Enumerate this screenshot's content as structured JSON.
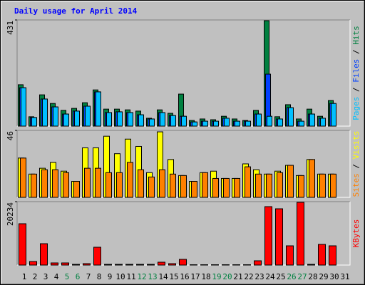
{
  "chart_data": [
    {
      "type": "bar",
      "title": "Daily usage for April 2014",
      "legend_separator": " / ",
      "ylim": [
        0,
        431
      ],
      "yticks": [
        431
      ],
      "series": [
        {
          "name": "Hits",
          "color": "#008040",
          "values": [
            168,
            38,
            127,
            92,
            64,
            72,
            95,
            147,
            69,
            69,
            66,
            61,
            32,
            66,
            52,
            130,
            23,
            29,
            26,
            40,
            29,
            23,
            64,
            428,
            38,
            87,
            29,
            69,
            40,
            104,
            0
          ]
        },
        {
          "name": "Files",
          "color": "#0040ff",
          "values": [
            156,
            35,
            110,
            78,
            49,
            61,
            81,
            139,
            55,
            58,
            55,
            46,
            29,
            55,
            43,
            40,
            17,
            20,
            20,
            32,
            20,
            20,
            49,
            211,
            29,
            75,
            20,
            49,
            32,
            92,
            0
          ]
        },
        {
          "name": "Pages",
          "color": "#00c0ff",
          "values": [
            156,
            35,
            110,
            78,
            49,
            61,
            81,
            139,
            55,
            58,
            55,
            46,
            29,
            55,
            43,
            40,
            17,
            20,
            20,
            32,
            20,
            20,
            49,
            40,
            29,
            75,
            20,
            49,
            32,
            92,
            0
          ]
        }
      ]
    },
    {
      "type": "bar",
      "legend_separator": " / ",
      "ylim": [
        0,
        46
      ],
      "yticks": [
        46
      ],
      "series": [
        {
          "name": "Visits",
          "color": "#ffff00",
          "values": [
            27,
            16,
            20,
            24,
            18,
            11,
            34,
            34,
            42,
            30,
            40,
            35,
            17,
            45,
            26,
            15,
            11,
            17,
            18,
            13,
            13,
            23,
            19,
            16,
            18,
            22,
            15,
            26,
            16,
            16,
            0
          ]
        },
        {
          "name": "Sites",
          "color": "#ff8000",
          "values": [
            27,
            16,
            19,
            19,
            17,
            11,
            20,
            20,
            17,
            17,
            24,
            19,
            14,
            19,
            16,
            15,
            11,
            17,
            13,
            13,
            13,
            21,
            16,
            16,
            17,
            22,
            15,
            26,
            16,
            16,
            0
          ]
        }
      ]
    },
    {
      "type": "bar",
      "ylim": [
        0,
        20234
      ],
      "yticks": [
        20234
      ],
      "categories": [
        "1",
        "2",
        "3",
        "4",
        "5",
        "6",
        "7",
        "8",
        "9",
        "10",
        "11",
        "12",
        "13",
        "14",
        "15",
        "16",
        "17",
        "18",
        "19",
        "20",
        "21",
        "22",
        "23",
        "24",
        "25",
        "26",
        "27",
        "28",
        "29",
        "30",
        "31"
      ],
      "category_colors": [
        "#000000",
        "#000000",
        "#000000",
        "#000000",
        "#008040",
        "#008040",
        "#000000",
        "#000000",
        "#000000",
        "#000000",
        "#000000",
        "#008040",
        "#008040",
        "#000000",
        "#000000",
        "#000000",
        "#000000",
        "#000000",
        "#008040",
        "#008040",
        "#000000",
        "#000000",
        "#000000",
        "#000000",
        "#000000",
        "#008040",
        "#008040",
        "#000000",
        "#000000",
        "#000000",
        "#000000"
      ],
      "series": [
        {
          "name": "KBytes",
          "color": "#ff0000",
          "values": [
            13186,
            1137,
            6820,
            682,
            682,
            227,
            455,
            5684,
            227,
            227,
            227,
            227,
            227,
            909,
            455,
            1819,
            100,
            100,
            100,
            100,
            100,
            100,
            1364,
            18642,
            17960,
            6138,
            20006,
            227,
            6593,
            6138,
            0
          ]
        }
      ]
    }
  ]
}
